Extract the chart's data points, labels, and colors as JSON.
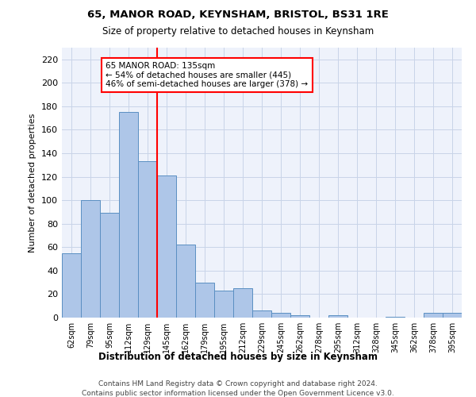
{
  "title1": "65, MANOR ROAD, KEYNSHAM, BRISTOL, BS31 1RE",
  "title2": "Size of property relative to detached houses in Keynsham",
  "xlabel": "Distribution of detached houses by size in Keynsham",
  "ylabel": "Number of detached properties",
  "categories": [
    "62sqm",
    "79sqm",
    "95sqm",
    "112sqm",
    "129sqm",
    "145sqm",
    "162sqm",
    "179sqm",
    "195sqm",
    "212sqm",
    "229sqm",
    "245sqm",
    "262sqm",
    "278sqm",
    "295sqm",
    "312sqm",
    "328sqm",
    "345sqm",
    "362sqm",
    "378sqm",
    "395sqm"
  ],
  "values": [
    55,
    100,
    89,
    175,
    133,
    121,
    62,
    30,
    23,
    25,
    6,
    4,
    2,
    0,
    2,
    0,
    0,
    1,
    0,
    4,
    4
  ],
  "bar_color": "#aec6e8",
  "bar_edge_color": "#5a8fc2",
  "annotation_text": "65 MANOR ROAD: 135sqm\n← 54% of detached houses are smaller (445)\n46% of semi-detached houses are larger (378) →",
  "annotation_box_color": "white",
  "annotation_box_edge_color": "red",
  "vline_color": "red",
  "vline_x": 4.5,
  "ylim": [
    0,
    230
  ],
  "yticks": [
    0,
    20,
    40,
    60,
    80,
    100,
    120,
    140,
    160,
    180,
    200,
    220
  ],
  "footnote1": "Contains HM Land Registry data © Crown copyright and database right 2024.",
  "footnote2": "Contains public sector information licensed under the Open Government Licence v3.0.",
  "background_color": "#eef2fb",
  "grid_color": "#c8d4e8"
}
